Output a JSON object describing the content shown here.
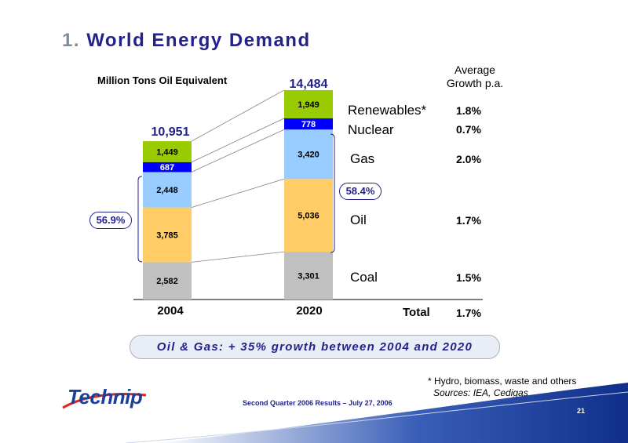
{
  "slide": {
    "title_number": "1.",
    "title": "World Energy Demand",
    "callout": "Oil & Gas: + 35% growth between 2004 and 2020",
    "footnote": "* Hydro, biomass, waste and others",
    "sources": "Sources: IEA, Cedigas",
    "footer": "Second Quarter 2006 Results – July 27, 2006",
    "page_number": "21",
    "logo_text": "Technip"
  },
  "chart_data": {
    "type": "bar",
    "stacked": true,
    "unit_label": "Million Tons Oil Equivalent",
    "categories": [
      "2004",
      "2020"
    ],
    "totals": [
      "10,951",
      "14,484"
    ],
    "series": [
      {
        "name": "Coal",
        "values": [
          2582,
          3301
        ],
        "labels": [
          "2,582",
          "3,301"
        ],
        "color": "#c0c0c0",
        "growth": "1.5%"
      },
      {
        "name": "Oil",
        "values": [
          3785,
          5036
        ],
        "labels": [
          "3,785",
          "5,036"
        ],
        "color": "#ffcc66",
        "growth": "1.7%"
      },
      {
        "name": "Gas",
        "values": [
          2448,
          3420
        ],
        "labels": [
          "2,448",
          "3,420"
        ],
        "color": "#99ccff",
        "growth": "2.0%"
      },
      {
        "name": "Nuclear",
        "values": [
          687,
          778
        ],
        "labels": [
          "687",
          "778"
        ],
        "color": "#0000ff",
        "growth": "0.7%"
      },
      {
        "name": "Renewables*",
        "values": [
          1449,
          1949
        ],
        "labels": [
          "1,449",
          "1,949"
        ],
        "color": "#99cc00",
        "growth": "1.8%"
      }
    ],
    "oil_gas_share": [
      "56.9%",
      "58.4%"
    ],
    "avg_growth_header": [
      "Average",
      "Growth p.a."
    ],
    "total_label": "Total",
    "total_growth": "1.7%",
    "grid": false
  }
}
